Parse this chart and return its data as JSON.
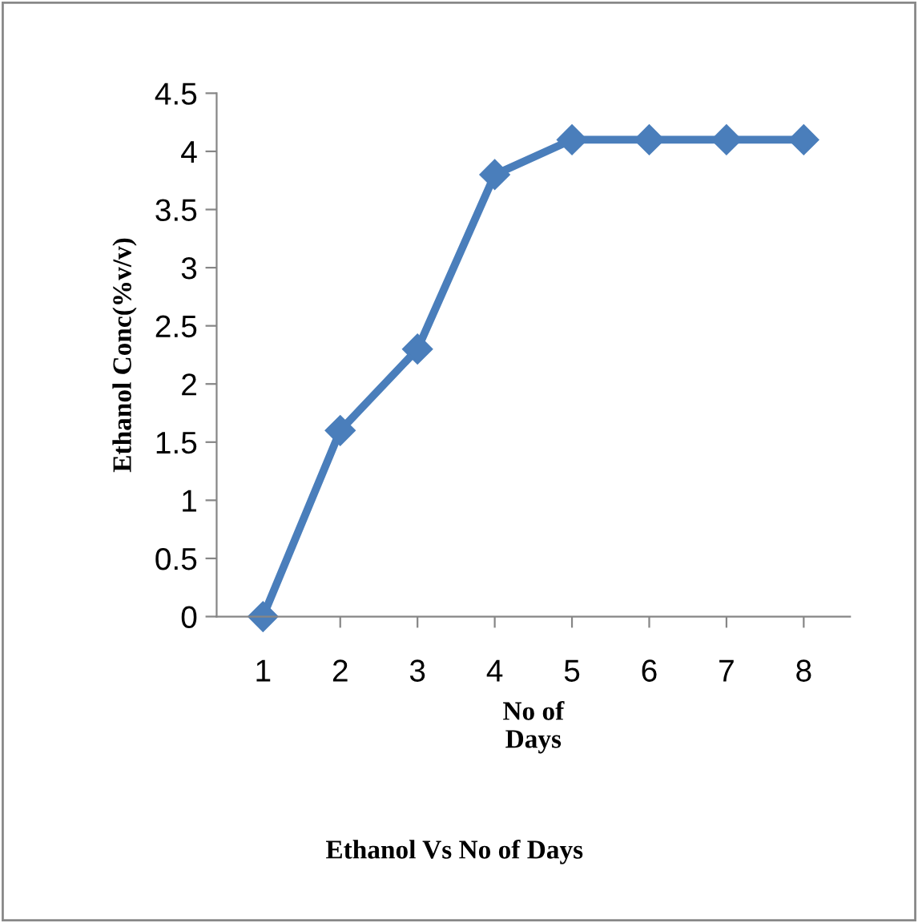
{
  "chart_data": {
    "type": "line",
    "title": "Ethanol Vs No of Days",
    "xlabel": "No of Days",
    "ylabel": "Ethanol Conc(%v/v)",
    "categories": [
      "1",
      "2",
      "3",
      "4",
      "5",
      "6",
      "7",
      "8"
    ],
    "series": [
      {
        "color": "#4a7ebb",
        "values": [
          0,
          1.6,
          2.3,
          3.8,
          4.1,
          4.1,
          4.1,
          4.1
        ]
      }
    ],
    "ylim": [
      0,
      4.5
    ],
    "yticks": [
      0,
      0.5,
      1,
      1.5,
      2,
      2.5,
      3,
      3.5,
      4,
      4.5
    ],
    "marker": "diamond",
    "line_style": "solid",
    "grid": false,
    "legend": false
  }
}
